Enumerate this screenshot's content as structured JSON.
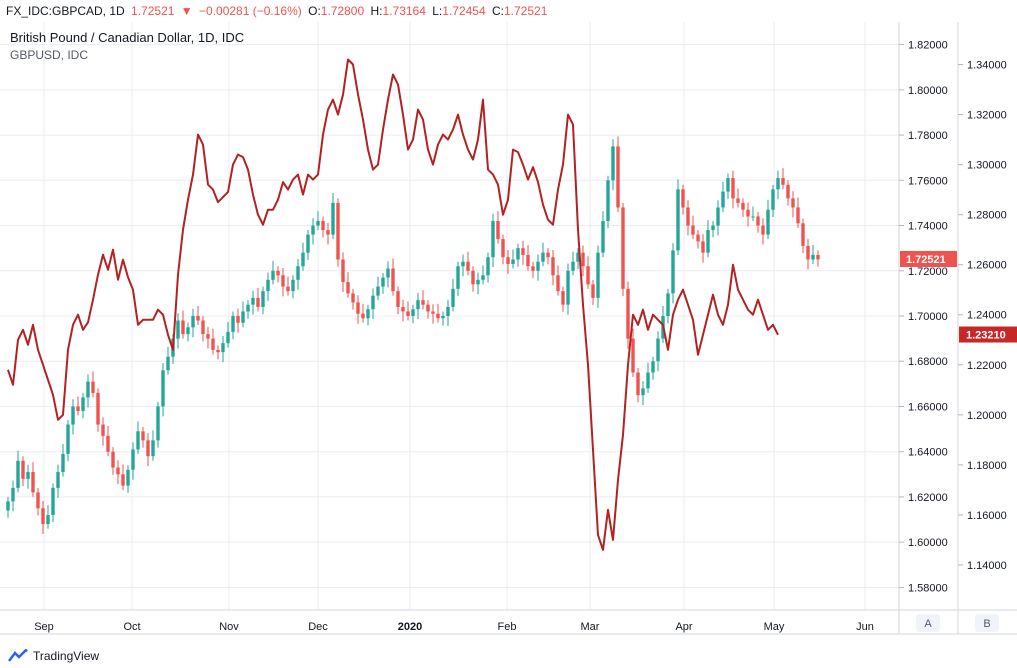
{
  "header": {
    "symbol": "FX_IDC:GBPCAD, 1D",
    "last": "1.72521",
    "change": "−0.00281 (−0.16%)",
    "o_label": "O:",
    "o": "1.72800",
    "h_label": "H:",
    "h": "1.73164",
    "l_label": "L:",
    "l": "1.72454",
    "c_label": "C:",
    "c": "1.72521"
  },
  "legend": {
    "title": "British Pound / Canadian Dollar, 1D, IDC",
    "subtitle": "GBPUSD, IDC"
  },
  "footer": {
    "brand": "TradingView",
    "btn_a": "A",
    "btn_b": "B"
  },
  "colors": {
    "up": "#26a69a",
    "down": "#ef5350",
    "line": "#b22222",
    "grid": "#e9ecf1",
    "axis_text": "#131722",
    "tag_red": "#ef5350",
    "tag_line": "#c62828"
  },
  "chart_data": {
    "type": "candlestick+line",
    "x_ticks": [
      "Sep",
      "Oct",
      "Nov",
      "Dec",
      "2020",
      "Feb",
      "Mar",
      "Apr",
      "May",
      "Jun"
    ],
    "y_axis_a": {
      "range": [
        1.57,
        1.83
      ],
      "ticks": [
        "1.82000",
        "1.80000",
        "1.78000",
        "1.76000",
        "1.74000",
        "1.72000",
        "1.70000",
        "1.68000",
        "1.66000",
        "1.64000",
        "1.62000",
        "1.60000",
        "1.58000"
      ],
      "last_label": "1.72521"
    },
    "y_axis_b": {
      "range": [
        1.122,
        1.357
      ],
      "ticks": [
        "1.34000",
        "1.32000",
        "1.30000",
        "1.28000",
        "1.26000",
        "1.24000",
        "1.22000",
        "1.20000",
        "1.18000",
        "1.16000",
        "1.14000"
      ],
      "last_label": "1.23210"
    },
    "series": [
      {
        "name": "GBPCAD",
        "kind": "candlestick",
        "close": [
          1.618,
          1.624,
          1.636,
          1.628,
          1.631,
          1.622,
          1.615,
          1.608,
          1.612,
          1.624,
          1.631,
          1.639,
          1.652,
          1.66,
          1.658,
          1.664,
          1.671,
          1.666,
          1.652,
          1.647,
          1.64,
          1.633,
          1.63,
          1.625,
          1.632,
          1.641,
          1.649,
          1.645,
          1.638,
          1.645,
          1.66,
          1.676,
          1.682,
          1.69,
          1.698,
          1.692,
          1.695,
          1.7,
          1.698,
          1.692,
          1.69,
          1.685,
          1.684,
          1.688,
          1.693,
          1.7,
          1.697,
          1.702,
          1.705,
          1.708,
          1.704,
          1.711,
          1.716,
          1.72,
          1.718,
          1.713,
          1.711,
          1.716,
          1.722,
          1.728,
          1.736,
          1.74,
          1.742,
          1.738,
          1.736,
          1.75,
          1.725,
          1.715,
          1.71,
          1.706,
          1.701,
          1.699,
          1.703,
          1.709,
          1.713,
          1.717,
          1.721,
          1.711,
          1.704,
          1.702,
          1.7,
          1.703,
          1.707,
          1.705,
          1.702,
          1.701,
          1.699,
          1.7,
          1.704,
          1.712,
          1.722,
          1.724,
          1.72,
          1.714,
          1.716,
          1.718,
          1.726,
          1.742,
          1.734,
          1.726,
          1.723,
          1.725,
          1.73,
          1.727,
          1.722,
          1.72,
          1.724,
          1.728,
          1.726,
          1.718,
          1.711,
          1.705,
          1.72,
          1.724,
          1.728,
          1.722,
          1.714,
          1.708,
          1.728,
          1.742,
          1.76,
          1.775,
          1.748,
          1.712,
          1.69,
          1.675,
          1.665,
          1.668,
          1.675,
          1.68,
          1.69,
          1.7,
          1.71,
          1.729,
          1.756,
          1.748,
          1.74,
          1.736,
          1.733,
          1.728,
          1.738,
          1.74,
          1.748,
          1.755,
          1.761,
          1.752,
          1.75,
          1.747,
          1.744,
          1.744,
          1.74,
          1.736,
          1.747,
          1.756,
          1.761,
          1.758,
          1.752,
          1.748,
          1.741,
          1.731,
          1.725,
          1.727,
          1.725
        ],
        "last": 1.72521
      },
      {
        "name": "GBPUSD",
        "kind": "line",
        "values": [
          1.218,
          1.212,
          1.23,
          1.234,
          1.228,
          1.236,
          1.226,
          1.22,
          1.214,
          1.208,
          1.198,
          1.2,
          1.226,
          1.236,
          1.24,
          1.234,
          1.237,
          1.246,
          1.256,
          1.264,
          1.258,
          1.266,
          1.254,
          1.262,
          1.255,
          1.25,
          1.236,
          1.238,
          1.238,
          1.238,
          1.242,
          1.24,
          1.232,
          1.226,
          1.256,
          1.274,
          1.286,
          1.296,
          1.312,
          1.308,
          1.292,
          1.29,
          1.285,
          1.287,
          1.289,
          1.3,
          1.304,
          1.303,
          1.298,
          1.288,
          1.28,
          1.276,
          1.282,
          1.282,
          1.286,
          1.293,
          1.29,
          1.294,
          1.296,
          1.288,
          1.296,
          1.294,
          1.296,
          1.312,
          1.322,
          1.326,
          1.32,
          1.328,
          1.342,
          1.34,
          1.328,
          1.318,
          1.306,
          1.298,
          1.3,
          1.314,
          1.326,
          1.336,
          1.332,
          1.32,
          1.306,
          1.31,
          1.322,
          1.318,
          1.306,
          1.3,
          1.308,
          1.312,
          1.31,
          1.314,
          1.32,
          1.312,
          1.306,
          1.302,
          1.31,
          1.326,
          1.298,
          1.296,
          1.292,
          1.28,
          1.286,
          1.306,
          1.305,
          1.3,
          1.294,
          1.299,
          1.293,
          1.284,
          1.278,
          1.276,
          1.29,
          1.3,
          1.32,
          1.316,
          1.274,
          1.244,
          1.22,
          1.186,
          1.152,
          1.146,
          1.162,
          1.15,
          1.174,
          1.192,
          1.22,
          1.24,
          1.236,
          1.242,
          1.234,
          1.24,
          1.238,
          1.236,
          1.226,
          1.24,
          1.246,
          1.25,
          1.244,
          1.238,
          1.224,
          1.232,
          1.24,
          1.248,
          1.24,
          1.236,
          1.244,
          1.26,
          1.25,
          1.246,
          1.242,
          1.24,
          1.246,
          1.24,
          1.234,
          1.236,
          1.232
        ],
        "last": 1.2321
      }
    ],
    "grid": true
  }
}
